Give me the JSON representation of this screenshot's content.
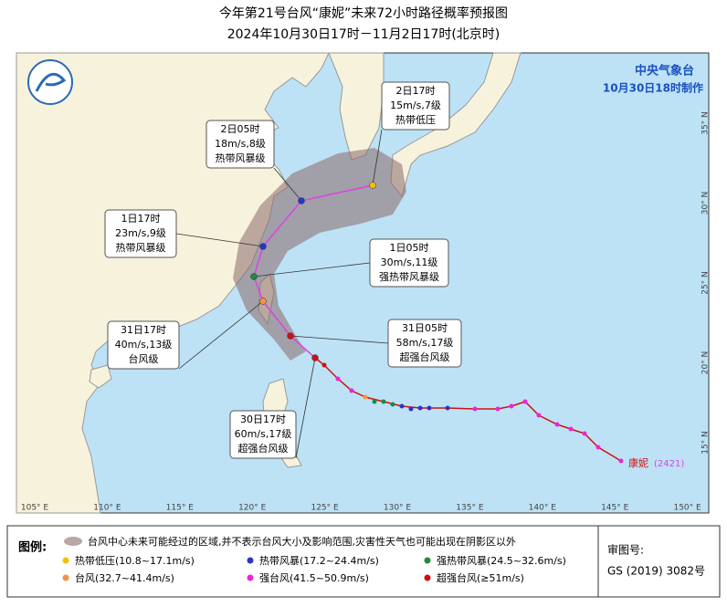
{
  "title": "今年第21号台风“康妮”未来72小时路径概率预报图",
  "subtitle": "2024年10月30日17时－11月2日17时(北京时)",
  "agency": "中央气象台",
  "issued": "10月30日18时制作",
  "callouts": [
    {
      "time": "2日17时",
      "wind": "15m/s,7级",
      "level": "热带低压"
    },
    {
      "time": "2日05时",
      "wind": "18m/s,8级",
      "level": "热带风暴级"
    },
    {
      "time": "1日17时",
      "wind": "23m/s,9级",
      "level": "热带风暴级"
    },
    {
      "time": "1日05时",
      "wind": "30m/s,11级",
      "level": "强热带风暴级"
    },
    {
      "time": "31日17时",
      "wind": "40m/s,13级",
      "level": "台风级"
    },
    {
      "time": "31日05时",
      "wind": "58m/s,17级",
      "level": "超强台风级"
    },
    {
      "time": "30日17时",
      "wind": "60m/s,17级",
      "level": "超强台风级"
    }
  ],
  "lon_labels": [
    "105° E",
    "110° E",
    "115° E",
    "120° E",
    "125° E",
    "130° E",
    "135° E",
    "140° E",
    "145° E",
    "150° E"
  ],
  "lat_labels": [
    "15° N",
    "20° N",
    "25° N",
    "30° N",
    "35° N"
  ],
  "typhoon_name": "康妮",
  "typhoon_id": "(2421)",
  "legend": {
    "title": "图例:",
    "cone": "台风中心未来可能经过的区域,并不表示台风大小及影响范围,灾害性天气也可能出现在阴影区以外",
    "items": [
      {
        "label": "热带低压(10.8~17.1m/s)",
        "color": "#f2c200"
      },
      {
        "label": "热带风暴(17.2~24.4m/s)",
        "color": "#2a34c8"
      },
      {
        "label": "强热带风暴(24.5~32.6m/s)",
        "color": "#1e8a3a"
      },
      {
        "label": "台风(32.7~41.4m/s)",
        "color": "#f7913d"
      },
      {
        "label": "强台风(41.5~50.9m/s)",
        "color": "#ee22dd"
      },
      {
        "label": "超强台风(≥51m/s)",
        "color": "#d01010"
      }
    ]
  },
  "approval": {
    "label": "审图号:",
    "number": "GS (2019) 3082号"
  }
}
